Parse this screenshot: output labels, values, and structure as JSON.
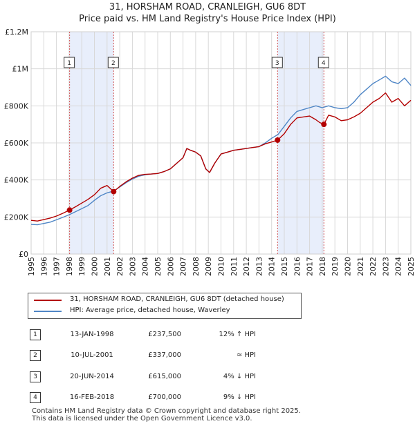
{
  "title": "31, HORSHAM ROAD, CRANLEIGH, GU6 8DT",
  "subtitle": "Price paid vs. HM Land Registry's House Price Index (HPI)",
  "colors": {
    "property": "#b30000",
    "hpi": "#4f86c6",
    "shade": "#e8eefb",
    "marker_line": "#d55555",
    "grid": "#d8d8d8"
  },
  "chart_data": {
    "type": "line",
    "title": "31, HORSHAM ROAD, CRANLEIGH, GU6 8DT",
    "subtitle": "Price paid vs. HM Land Registry's House Price Index (HPI)",
    "xlabel": "",
    "ylabel": "",
    "xlim": [
      1995,
      2025
    ],
    "ylim": [
      0,
      1200000
    ],
    "x_ticks": [
      1995,
      1996,
      1997,
      1998,
      1999,
      2000,
      2001,
      2002,
      2003,
      2004,
      2005,
      2006,
      2007,
      2008,
      2009,
      2010,
      2011,
      2012,
      2013,
      2014,
      2015,
      2016,
      2017,
      2018,
      2019,
      2020,
      2021,
      2022,
      2023,
      2024,
      2025
    ],
    "y_ticks": [
      {
        "value": 0,
        "label": "£0"
      },
      {
        "value": 200000,
        "label": "£200K"
      },
      {
        "value": 400000,
        "label": "£400K"
      },
      {
        "value": 600000,
        "label": "£600K"
      },
      {
        "value": 800000,
        "label": "£800K"
      },
      {
        "value": 1000000,
        "label": "£1M"
      },
      {
        "value": 1200000,
        "label": "£1.2M"
      }
    ],
    "grid": true,
    "shaded_ranges": [
      [
        1998.04,
        2001.52
      ],
      [
        2014.47,
        2018.13
      ]
    ],
    "series": [
      {
        "name": "31, HORSHAM ROAD, CRANLEIGH, GU6 8DT (detached house)",
        "color": "#b30000",
        "x": [
          1995,
          1995.5,
          1996,
          1996.5,
          1997,
          1997.5,
          1998.04,
          1998.5,
          1999,
          1999.5,
          2000,
          2000.5,
          2001,
          2001.52,
          2002,
          2002.5,
          2003,
          2003.5,
          2004,
          2004.5,
          2005,
          2005.5,
          2006,
          2006.5,
          2007,
          2007.3,
          2007.6,
          2008,
          2008.4,
          2008.8,
          2009.1,
          2009.5,
          2010,
          2010.5,
          2011,
          2011.5,
          2012,
          2012.5,
          2013,
          2013.5,
          2014,
          2014.47,
          2015,
          2015.5,
          2016,
          2016.5,
          2017,
          2017.5,
          2017.8,
          2018.13,
          2018.5,
          2019,
          2019.5,
          2020,
          2020.5,
          2021,
          2021.5,
          2022,
          2022.5,
          2023,
          2023.5,
          2024,
          2024.5,
          2025
        ],
        "y": [
          182000,
          178000,
          186000,
          194000,
          205000,
          220000,
          237500,
          255000,
          275000,
          295000,
          320000,
          355000,
          370000,
          337000,
          365000,
          390000,
          410000,
          425000,
          430000,
          432000,
          435000,
          445000,
          460000,
          490000,
          520000,
          570000,
          560000,
          550000,
          530000,
          460000,
          440000,
          490000,
          540000,
          550000,
          560000,
          565000,
          570000,
          575000,
          580000,
          595000,
          605000,
          615000,
          650000,
          700000,
          735000,
          740000,
          745000,
          725000,
          710000,
          700000,
          750000,
          740000,
          720000,
          725000,
          740000,
          760000,
          790000,
          820000,
          840000,
          870000,
          820000,
          840000,
          800000,
          830000
        ]
      },
      {
        "name": "HPI: Average price, detached house, Waverley",
        "color": "#4f86c6",
        "x": [
          1995,
          1995.5,
          1996,
          1996.5,
          1997,
          1997.5,
          1998,
          1998.5,
          1999,
          1999.5,
          2000,
          2000.5,
          2001,
          2001.5,
          2002,
          2002.5,
          2003,
          2003.5,
          2004,
          2004.5,
          2005,
          2005.5,
          2006,
          2006.5,
          2007,
          2007.3,
          2007.6,
          2008,
          2008.4,
          2008.8,
          2009.1,
          2009.5,
          2010,
          2010.5,
          2011,
          2011.5,
          2012,
          2012.5,
          2013,
          2013.5,
          2014,
          2014.5,
          2015,
          2015.5,
          2016,
          2016.5,
          2017,
          2017.5,
          2018,
          2018.5,
          2019,
          2019.5,
          2020,
          2020.5,
          2021,
          2021.5,
          2022,
          2022.5,
          2023,
          2023.5,
          2024,
          2024.5,
          2025
        ],
        "y": [
          160000,
          158000,
          165000,
          172000,
          185000,
          198000,
          212000,
          228000,
          245000,
          262000,
          290000,
          315000,
          330000,
          340000,
          362000,
          385000,
          405000,
          420000,
          428000,
          432000,
          435000,
          445000,
          460000,
          490000,
          520000,
          570000,
          560000,
          550000,
          530000,
          460000,
          440000,
          490000,
          540000,
          550000,
          560000,
          565000,
          570000,
          575000,
          580000,
          600000,
          625000,
          645000,
          690000,
          735000,
          770000,
          780000,
          790000,
          800000,
          790000,
          800000,
          790000,
          785000,
          790000,
          820000,
          860000,
          890000,
          920000,
          940000,
          960000,
          930000,
          920000,
          950000,
          910000
        ]
      }
    ],
    "sales": [
      {
        "num": "1",
        "x": 1998.04,
        "price": 237500
      },
      {
        "num": "2",
        "x": 2001.52,
        "price": 337000
      },
      {
        "num": "3",
        "x": 2014.47,
        "price": 615000
      },
      {
        "num": "4",
        "x": 2018.13,
        "price": 700000
      }
    ],
    "legend": [
      "31, HORSHAM ROAD, CRANLEIGH, GU6 8DT (detached house)",
      "HPI: Average price, detached house, Waverley"
    ]
  },
  "transactions": [
    {
      "num": "1",
      "date": "13-JAN-1998",
      "price": "£237,500",
      "relation": "12% ↑ HPI"
    },
    {
      "num": "2",
      "date": "10-JUL-2001",
      "price": "£337,000",
      "relation": "≈ HPI"
    },
    {
      "num": "3",
      "date": "20-JUN-2014",
      "price": "£615,000",
      "relation": "4% ↓ HPI"
    },
    {
      "num": "4",
      "date": "16-FEB-2018",
      "price": "£700,000",
      "relation": "9% ↓ HPI"
    }
  ],
  "footer": {
    "line1": "Contains HM Land Registry data © Crown copyright and database right 2025.",
    "line2": "This data is licensed under the Open Government Licence v3.0."
  }
}
